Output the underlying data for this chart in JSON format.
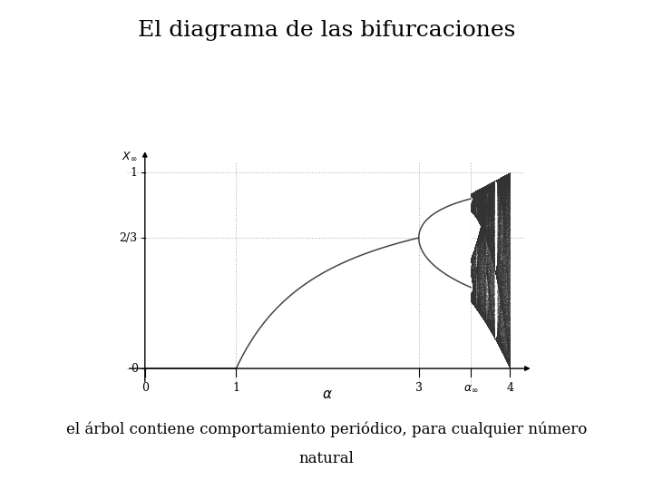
{
  "title": "El diagrama de las bifurcaciones",
  "subtitle_line1": "el árbol contiene comportamiento periódico, para cualquier número",
  "subtitle_line2": "natural",
  "alpha_inf_val": 3.5699456,
  "background_color": "#ffffff",
  "line_color": "#444444",
  "dotted_color": "#aaaaaa",
  "title_fontsize": 18,
  "subtitle_fontsize": 12
}
